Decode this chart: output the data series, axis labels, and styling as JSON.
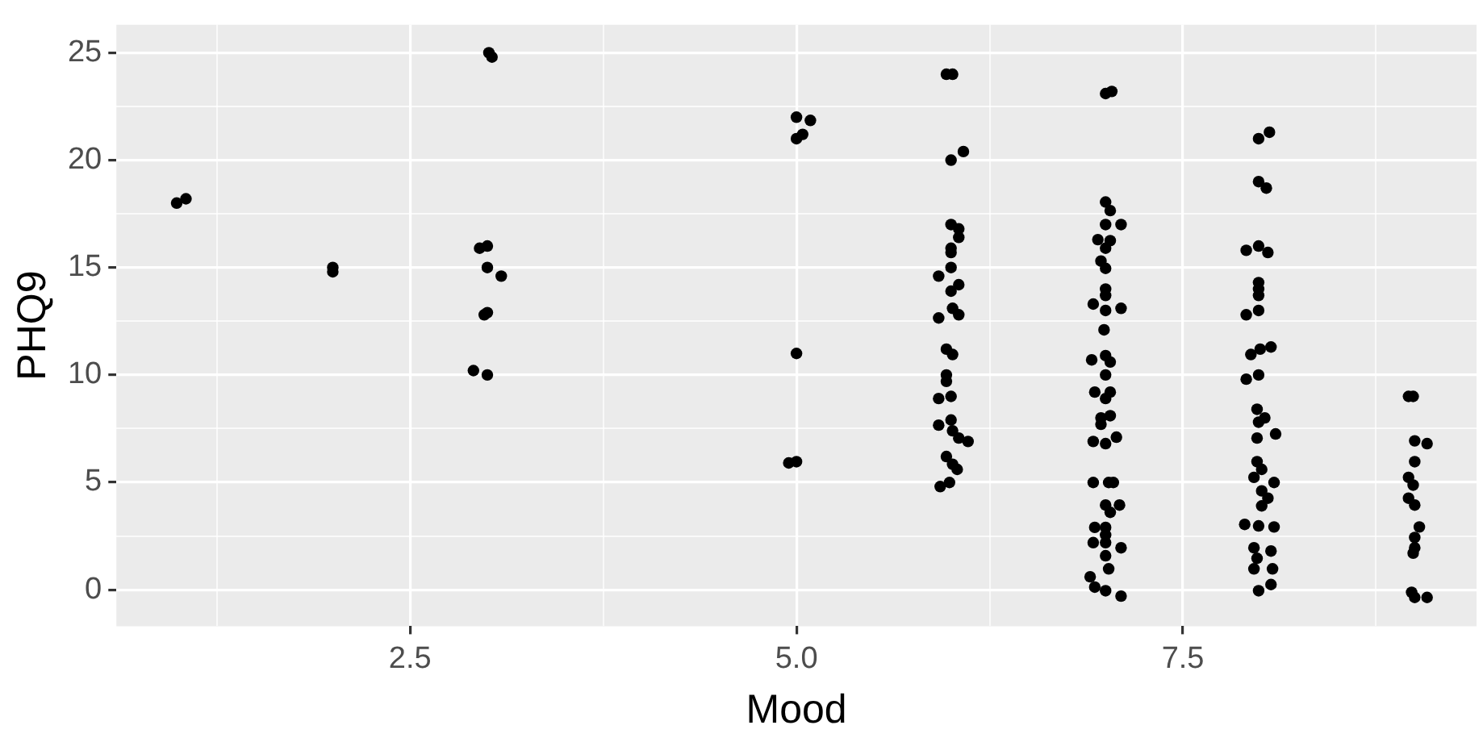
{
  "chart_data": {
    "type": "scatter",
    "xlabel": "Mood",
    "ylabel": "PHQ9",
    "color": "#000000",
    "marker": "circle",
    "grid": true,
    "legend": false,
    "xlim": [
      0.6,
      9.4
    ],
    "ylim": [
      -1.7,
      26.3
    ],
    "xticks": [
      {
        "value": 1.25,
        "label": null
      },
      2.5,
      {
        "value": 3.75,
        "label": null
      },
      {
        "value": 5,
        "label": "5.0"
      },
      {
        "value": 6.25,
        "label": null
      },
      7.5,
      {
        "value": 8.75,
        "label": null
      }
    ],
    "yticks": [
      0,
      {
        "value": 2.5,
        "label": null
      },
      5,
      {
        "value": 7.5,
        "label": null
      },
      10,
      {
        "value": 12.5,
        "label": null
      },
      15,
      {
        "value": 17.5,
        "label": null
      },
      20,
      {
        "value": 22.5,
        "label": null
      },
      25
    ],
    "x": [
      0.99,
      1.05,
      2.0,
      2.0,
      3.01,
      3.03,
      2.95,
      3.0,
      3.0,
      3.09,
      2.98,
      3.0,
      2.91,
      3.0,
      5.0,
      5.09,
      5.0,
      5.04,
      5.0,
      4.95,
      5.0,
      5.97,
      6.01,
      6.0,
      6.08,
      6.0,
      6.05,
      6.05,
      6.0,
      6.0,
      6.0,
      5.92,
      6.05,
      6.0,
      6.01,
      5.92,
      6.05,
      5.97,
      6.01,
      5.97,
      5.97,
      5.92,
      6.0,
      5.92,
      6.0,
      6.01,
      6.05,
      6.11,
      5.97,
      6.01,
      6.04,
      5.99,
      5.93,
      7.0,
      7.04,
      7.0,
      7.03,
      7.0,
      7.1,
      6.95,
      7.03,
      7.0,
      6.97,
      7.0,
      7.0,
      7.0,
      6.92,
      7.0,
      7.1,
      6.99,
      6.91,
      7.0,
      7.03,
      7.0,
      6.93,
      7.03,
      7.0,
      6.97,
      7.03,
      6.97,
      6.92,
      7.0,
      7.07,
      6.92,
      7.02,
      7.05,
      7.0,
      7.09,
      7.03,
      6.93,
      7.0,
      7.0,
      6.92,
      7.0,
      7.1,
      7.0,
      7.02,
      6.9,
      6.93,
      7.0,
      7.1,
      7.99,
      8.06,
      7.99,
      8.04,
      7.91,
      7.99,
      8.05,
      7.99,
      7.99,
      7.99,
      7.91,
      7.99,
      7.94,
      8.0,
      8.07,
      7.91,
      7.99,
      7.98,
      8.03,
      7.99,
      7.98,
      8.1,
      7.98,
      8.01,
      7.96,
      8.09,
      8.01,
      8.05,
      8.01,
      7.9,
      7.99,
      8.09,
      7.96,
      8.07,
      7.98,
      8.08,
      7.96,
      8.07,
      7.99,
      8.96,
      8.99,
      9.0,
      9.08,
      9.0,
      8.96,
      8.99,
      8.96,
      9.0,
      9.03,
      9.0,
      8.99,
      9.0,
      8.98,
      9.0,
      9.08
    ],
    "values": [
      18.0,
      18.2,
      15.0,
      14.8,
      25.0,
      24.8,
      15.9,
      16.0,
      15.0,
      14.6,
      12.8,
      12.9,
      10.2,
      10.0,
      22.0,
      21.85,
      21.0,
      21.2,
      11.0,
      5.9,
      5.96,
      24.0,
      24.0,
      20.0,
      20.4,
      17.0,
      16.8,
      16.4,
      15.9,
      15.7,
      15.0,
      14.6,
      14.2,
      13.9,
      13.1,
      12.65,
      12.8,
      11.2,
      10.95,
      10.0,
      9.7,
      8.9,
      9.0,
      7.66,
      7.9,
      7.4,
      7.06,
      6.9,
      6.2,
      5.84,
      5.6,
      4.99,
      4.8,
      23.1,
      23.2,
      18.05,
      17.65,
      17.0,
      17.0,
      16.3,
      16.25,
      15.9,
      15.3,
      14.96,
      14.0,
      13.7,
      13.3,
      13.0,
      13.1,
      12.1,
      10.7,
      10.9,
      10.6,
      10.0,
      9.2,
      9.2,
      8.9,
      8.0,
      8.1,
      7.7,
      6.9,
      6.8,
      7.1,
      4.99,
      4.99,
      4.99,
      3.94,
      3.94,
      3.6,
      2.9,
      2.9,
      2.55,
      2.19,
      2.19,
      1.95,
      1.58,
      0.97,
      0.6,
      0.12,
      -0.05,
      -0.3,
      21.0,
      21.3,
      19.0,
      18.7,
      15.8,
      16.0,
      15.7,
      14.3,
      14.0,
      13.7,
      12.8,
      13.0,
      10.95,
      11.2,
      11.3,
      9.8,
      10.0,
      8.4,
      8.0,
      7.8,
      7.06,
      7.25,
      5.96,
      5.6,
      5.23,
      4.99,
      4.6,
      4.26,
      3.9,
      3.04,
      2.97,
      2.92,
      1.95,
      1.8,
      1.46,
      0.97,
      0.97,
      0.24,
      -0.05,
      9.0,
      9.0,
      6.93,
      6.8,
      5.96,
      5.23,
      4.87,
      4.26,
      3.94,
      2.92,
      2.43,
      1.7,
      1.95,
      -0.12,
      -0.36,
      -0.36
    ]
  }
}
